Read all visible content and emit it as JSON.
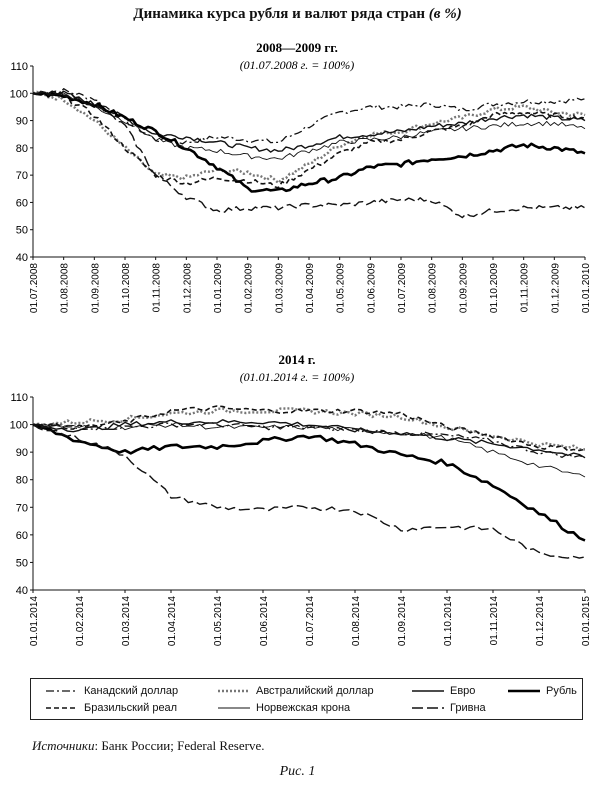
{
  "page": {
    "title": "Динамика курса рубля и валют ряда стран",
    "title_unit": "(в %)",
    "source_label": "Источники",
    "source_text": ": Банк России; Federal Reserve.",
    "figure_label": "Рис. 1"
  },
  "series_styles": [
    {
      "name": "Канадский доллар",
      "color": "#111111",
      "dash": "8,3,2,3",
      "width": 1.3
    },
    {
      "name": "Австралийский доллар",
      "color": "#777777",
      "dash": "2,2",
      "width": 2.4
    },
    {
      "name": "Евро",
      "color": "#111111",
      "dash": "",
      "width": 1.4
    },
    {
      "name": "Рубль",
      "color": "#000000",
      "dash": "",
      "width": 2.6
    },
    {
      "name": "Бразильский реал",
      "color": "#111111",
      "dash": "5,3",
      "width": 1.6
    },
    {
      "name": "Норвежская крона",
      "color": "#111111",
      "dash": "",
      "width": 0.9
    },
    {
      "name": "Гривна",
      "color": "#111111",
      "dash": "11,4",
      "width": 1.4
    }
  ],
  "chart_data": [
    {
      "type": "line",
      "title": "2008—2009 гг.",
      "subtitle": "(01.07.2008 г. = 100%)",
      "ylim": [
        40,
        110
      ],
      "yticks": [
        40,
        50,
        60,
        70,
        80,
        90,
        100,
        110
      ],
      "categories": [
        "01.07.2008",
        "01.08.2008",
        "01.09.2008",
        "01.10.2008",
        "01.11.2008",
        "01.12.2008",
        "01.01.2009",
        "01.02.2009",
        "01.03.2009",
        "01.04.2009",
        "01.05.2009",
        "01.06.2009",
        "01.07.2009",
        "01.08.2009",
        "01.09.2009",
        "01.10.2009",
        "01.11.2009",
        "01.12.2009",
        "01.01.2010"
      ],
      "grid": false,
      "series": [
        {
          "name": "Канадский доллар",
          "values": [
            100,
            101,
            98,
            90,
            83,
            82,
            84,
            83,
            82,
            88,
            93,
            95,
            95,
            96,
            94,
            96,
            97,
            97,
            98
          ]
        },
        {
          "name": "Австралийский доллар",
          "values": [
            100,
            98,
            90,
            80,
            70,
            69,
            72,
            71,
            68,
            74,
            81,
            85,
            86,
            89,
            91,
            94,
            95,
            93,
            92
          ]
        },
        {
          "name": "Евро",
          "values": [
            100,
            100,
            96,
            91,
            85,
            84,
            82,
            80,
            79,
            81,
            84,
            85,
            86,
            88,
            89,
            91,
            92,
            91,
            90
          ]
        },
        {
          "name": "Рубль",
          "values": [
            100,
            99,
            96,
            91,
            86,
            80,
            73,
            65,
            64,
            67,
            69,
            73,
            74,
            76,
            77,
            79,
            81,
            80,
            78
          ]
        },
        {
          "name": "Бразильский реал",
          "values": [
            100,
            99,
            92,
            80,
            70,
            67,
            69,
            68,
            66,
            72,
            78,
            82,
            83,
            86,
            88,
            92,
            93,
            92,
            91
          ]
        },
        {
          "name": "Норвежская крона",
          "values": [
            100,
            100,
            95,
            90,
            83,
            80,
            79,
            77,
            76,
            79,
            82,
            83,
            84,
            86,
            87,
            88,
            89,
            89,
            87
          ]
        },
        {
          "name": "Гривна",
          "values": [
            100,
            100,
            96,
            88,
            70,
            62,
            57,
            58,
            58,
            59,
            59,
            60,
            61,
            61,
            55,
            57,
            58,
            58,
            58
          ]
        }
      ]
    },
    {
      "type": "line",
      "title": "2014 г.",
      "subtitle": "(01.01.2014 г. = 100%)",
      "ylim": [
        40,
        110
      ],
      "yticks": [
        40,
        50,
        60,
        70,
        80,
        90,
        100,
        110
      ],
      "categories": [
        "01.01.2014",
        "01.02.2014",
        "01.03.2014",
        "01.04.2014",
        "01.05.2014",
        "01.06.2014",
        "01.07.2014",
        "01.08.2014",
        "01.09.2014",
        "01.10.2014",
        "01.11.2014",
        "01.12.2014",
        "01.01.2015"
      ],
      "grid": false,
      "series": [
        {
          "name": "Канадский доллар",
          "values": [
            100,
            99,
            99,
            100,
            100,
            99,
            99,
            98,
            97,
            96,
            94,
            90,
            88
          ]
        },
        {
          "name": "Австралийский доллар",
          "values": [
            100,
            101,
            102,
            104,
            105,
            105,
            105,
            104,
            103,
            99,
            96,
            93,
            91
          ]
        },
        {
          "name": "Евро",
          "values": [
            100,
            98,
            100,
            101,
            101,
            101,
            100,
            98,
            97,
            95,
            93,
            91,
            88
          ]
        },
        {
          "name": "Рубль",
          "values": [
            100,
            94,
            90,
            92,
            92,
            94,
            96,
            93,
            89,
            86,
            78,
            68,
            58
          ]
        },
        {
          "name": "Бразильский реал",
          "values": [
            100,
            99,
            101,
            105,
            106,
            105,
            105,
            105,
            104,
            99,
            96,
            92,
            91
          ]
        },
        {
          "name": "Норвежская крона",
          "values": [
            100,
            99,
            99,
            100,
            99,
            99,
            99,
            98,
            97,
            95,
            90,
            85,
            81
          ]
        },
        {
          "name": "Гривна",
          "values": [
            100,
            95,
            89,
            74,
            70,
            69,
            70,
            69,
            62,
            63,
            62,
            53,
            52
          ]
        }
      ]
    }
  ]
}
